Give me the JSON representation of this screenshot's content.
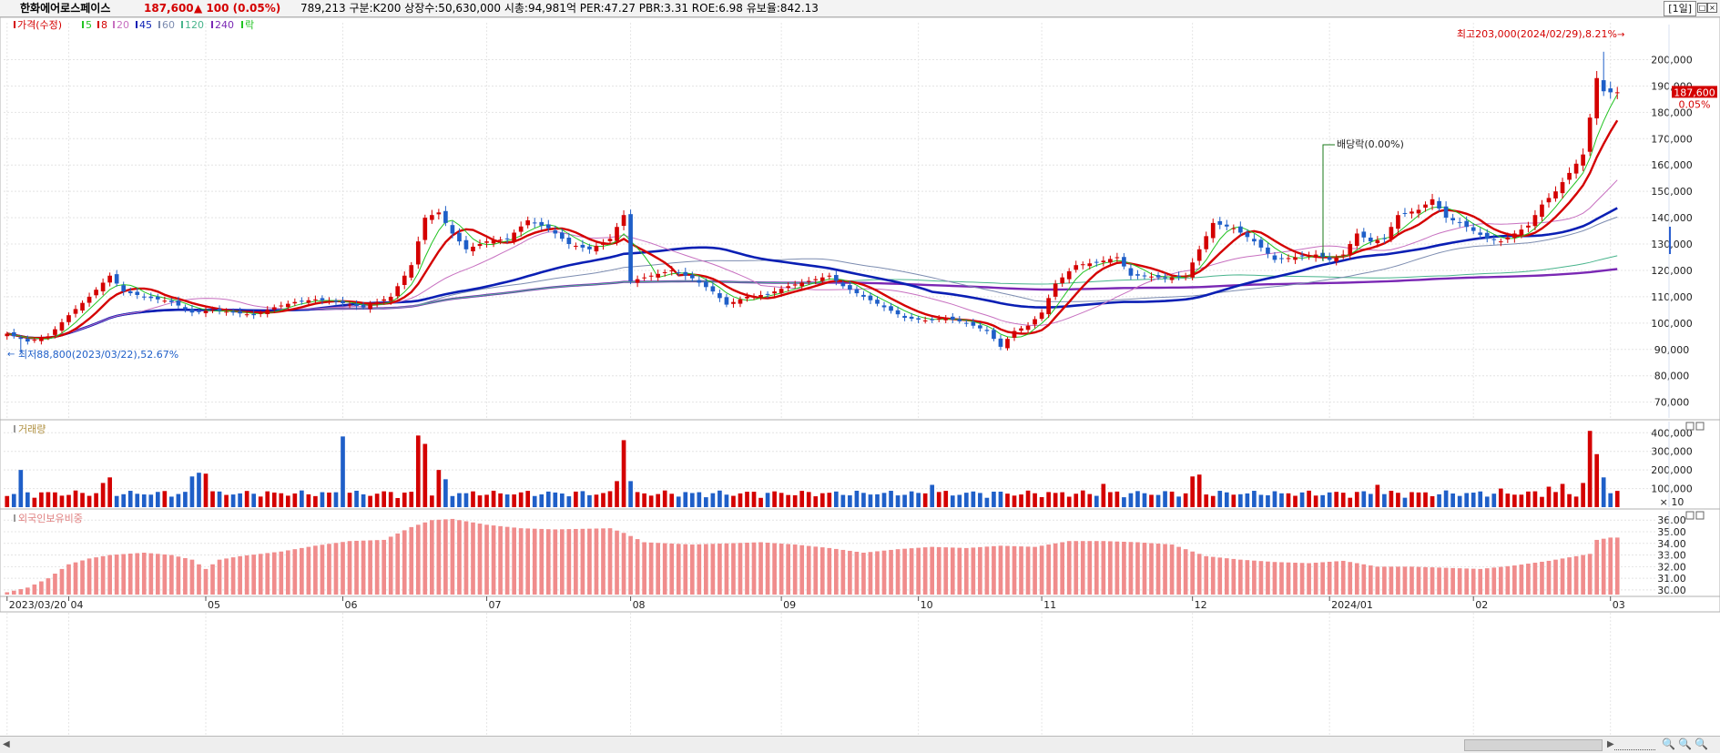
{
  "header": {
    "stock_name": "한화에어로스페이스",
    "price": "187,600",
    "change": "▲ 100 (0.05%)",
    "stats": "789,213  구분:K200 상장수:50,630,000 시총:94,981억 PER:47.27 PBR:3.31 ROE:6.98 유보율:842.13",
    "period_button": "[1일]"
  },
  "colors": {
    "up": "#d40000",
    "down": "#1f5fc8",
    "ma5": "#22c322",
    "ma8": "#d40000",
    "ma20": "#c770c0",
    "ma45": "#0a1fb4",
    "ma60": "#7c8cb0",
    "ma120": "#48b48c",
    "ma240": "#7a28b4",
    "foreign_bar": "#f08c8c"
  },
  "chart_data": [
    {
      "type": "candlestick",
      "panel": "price",
      "legend": [
        {
          "label": "가격(수정)",
          "color": "#d40000"
        },
        {
          "label": "5",
          "color": "#22c322"
        },
        {
          "label": "8",
          "color": "#d40000"
        },
        {
          "label": "20",
          "color": "#c770c0"
        },
        {
          "label": "45",
          "color": "#0a1fb4"
        },
        {
          "label": "60",
          "color": "#7c8cb0"
        },
        {
          "label": "120",
          "color": "#48b48c"
        },
        {
          "label": "240",
          "color": "#7a28b4"
        },
        {
          "label": "락",
          "color": "#22c322"
        }
      ],
      "y_ticks": [
        200000,
        190000,
        180000,
        170000,
        160000,
        150000,
        140000,
        130000,
        120000,
        110000,
        100000,
        90000,
        80000,
        70000
      ],
      "y_tick_labels": [
        "200,000",
        "190,000",
        "180,000",
        "170,000",
        "160,000",
        "150,000",
        "140,000",
        "130,000",
        "120,000",
        "110,000",
        "100,000",
        "90,000",
        "80,000",
        "70,000"
      ],
      "ylim": [
        64000,
        214000
      ],
      "x_labels": [
        {
          "label": "2023/03/20",
          "index": 0
        },
        {
          "label": "04",
          "index": 9
        },
        {
          "label": "05",
          "index": 29
        },
        {
          "label": "06",
          "index": 49
        },
        {
          "label": "07",
          "index": 70
        },
        {
          "label": "08",
          "index": 91
        },
        {
          "label": "09",
          "index": 113
        },
        {
          "label": "10",
          "index": 133
        },
        {
          "label": "11",
          "index": 151
        },
        {
          "label": "12",
          "index": 173
        },
        {
          "label": "2024/01",
          "index": 193
        },
        {
          "label": "02",
          "index": 214
        },
        {
          "label": "03",
          "index": 234
        }
      ],
      "n_points": 236,
      "key_closes": [
        [
          0,
          96000
        ],
        [
          3,
          93000
        ],
        [
          6,
          95000
        ],
        [
          9,
          103000
        ],
        [
          12,
          110000
        ],
        [
          15,
          118000
        ],
        [
          17,
          112000
        ],
        [
          20,
          110000
        ],
        [
          24,
          108000
        ],
        [
          27,
          104000
        ],
        [
          30,
          105000
        ],
        [
          33,
          104000
        ],
        [
          36,
          103000
        ],
        [
          39,
          106000
        ],
        [
          42,
          108000
        ],
        [
          45,
          109000
        ],
        [
          48,
          108000
        ],
        [
          52,
          106000
        ],
        [
          56,
          110000
        ],
        [
          59,
          122000
        ],
        [
          61,
          140000
        ],
        [
          63,
          142000
        ],
        [
          65,
          134000
        ],
        [
          67,
          128000
        ],
        [
          70,
          131000
        ],
        [
          73,
          132000
        ],
        [
          76,
          139000
        ],
        [
          79,
          136000
        ],
        [
          82,
          130000
        ],
        [
          85,
          128000
        ],
        [
          88,
          132000
        ],
        [
          90,
          141000
        ],
        [
          91,
          116000
        ],
        [
          94,
          118000
        ],
        [
          97,
          120000
        ],
        [
          100,
          117000
        ],
        [
          103,
          112000
        ],
        [
          105,
          107000
        ],
        [
          108,
          110000
        ],
        [
          111,
          111000
        ],
        [
          114,
          114000
        ],
        [
          117,
          116000
        ],
        [
          120,
          118000
        ],
        [
          122,
          114000
        ],
        [
          125,
          110000
        ],
        [
          128,
          106000
        ],
        [
          131,
          102000
        ],
        [
          134,
          101000
        ],
        [
          137,
          102000
        ],
        [
          140,
          100000
        ],
        [
          143,
          97000
        ],
        [
          145,
          91000
        ],
        [
          147,
          97000
        ],
        [
          149,
          99000
        ],
        [
          151,
          104000
        ],
        [
          153,
          115000
        ],
        [
          156,
          122000
        ],
        [
          159,
          123000
        ],
        [
          162,
          125000
        ],
        [
          164,
          118000
        ],
        [
          166,
          118000
        ],
        [
          169,
          117000
        ],
        [
          172,
          118000
        ],
        [
          174,
          128000
        ],
        [
          176,
          138000
        ],
        [
          179,
          136000
        ],
        [
          182,
          131000
        ],
        [
          185,
          124000
        ],
        [
          188,
          125000
        ],
        [
          191,
          126000
        ],
        [
          193,
          124000
        ],
        [
          195,
          126000
        ],
        [
          197,
          134000
        ],
        [
          199,
          131000
        ],
        [
          201,
          132000
        ],
        [
          203,
          141000
        ],
        [
          206,
          143000
        ],
        [
          208,
          147000
        ],
        [
          210,
          140000
        ],
        [
          212,
          138000
        ],
        [
          214,
          135000
        ],
        [
          216,
          132000
        ],
        [
          218,
          131000
        ],
        [
          220,
          134000
        ],
        [
          222,
          137000
        ],
        [
          224,
          145000
        ],
        [
          226,
          150000
        ],
        [
          228,
          157000
        ],
        [
          230,
          164000
        ],
        [
          231,
          178000
        ],
        [
          232,
          193000
        ],
        [
          233,
          188000
        ],
        [
          234,
          187600
        ]
      ],
      "high_annotation": "최고203,000(2024/02/29),8.21%",
      "low_annotation": "최저88,800(2023/03/22),52.67%",
      "dividend_annotation": "배당락(0.00%)",
      "last_price_label": "187,600",
      "last_change_label": "0.05%"
    },
    {
      "type": "bar",
      "panel": "volume",
      "legend": [
        {
          "label": "거래량",
          "color": "#999999"
        }
      ],
      "y_ticks": [
        400000,
        300000,
        200000,
        100000
      ],
      "y_tick_labels": [
        "400,000",
        "300,000",
        "200,000",
        "100,000"
      ],
      "unit_label": "× 10",
      "ylim": [
        0,
        460000
      ],
      "spikes": [
        [
          2,
          200000
        ],
        [
          14,
          130000
        ],
        [
          15,
          160000
        ],
        [
          27,
          165000
        ],
        [
          28,
          185000
        ],
        [
          29,
          180000
        ],
        [
          49,
          380000
        ],
        [
          60,
          385000
        ],
        [
          61,
          340000
        ],
        [
          63,
          200000
        ],
        [
          64,
          150000
        ],
        [
          89,
          140000
        ],
        [
          90,
          360000
        ],
        [
          91,
          140000
        ],
        [
          135,
          120000
        ],
        [
          160,
          125000
        ],
        [
          173,
          165000
        ],
        [
          174,
          175000
        ],
        [
          200,
          120000
        ],
        [
          218,
          100000
        ],
        [
          225,
          110000
        ],
        [
          227,
          125000
        ],
        [
          230,
          130000
        ],
        [
          231,
          410000
        ],
        [
          232,
          285000
        ],
        [
          233,
          160000
        ],
        [
          234,
          75000
        ]
      ]
    },
    {
      "type": "bar",
      "panel": "foreign_ownership",
      "legend": [
        {
          "label": "외국인보유비중",
          "color": "#f08c8c"
        }
      ],
      "y_ticks": [
        36,
        35,
        34,
        33,
        32,
        31,
        30
      ],
      "y_tick_labels": [
        "36.00",
        "35.00",
        "34.00",
        "33.00",
        "32.00",
        "31.00",
        "30.00"
      ],
      "ylim": [
        29.6,
        36.8
      ],
      "key_values": [
        [
          0,
          29.8
        ],
        [
          3,
          30.2
        ],
        [
          6,
          31.0
        ],
        [
          9,
          32.2
        ],
        [
          12,
          32.7
        ],
        [
          15,
          33.0
        ],
        [
          20,
          33.2
        ],
        [
          24,
          33.0
        ],
        [
          27,
          32.6
        ],
        [
          29,
          31.8
        ],
        [
          31,
          32.6
        ],
        [
          34,
          32.9
        ],
        [
          40,
          33.3
        ],
        [
          45,
          33.8
        ],
        [
          50,
          34.2
        ],
        [
          55,
          34.3
        ],
        [
          59,
          35.4
        ],
        [
          62,
          36.0
        ],
        [
          65,
          36.1
        ],
        [
          70,
          35.6
        ],
        [
          75,
          35.3
        ],
        [
          80,
          35.2
        ],
        [
          88,
          35.3
        ],
        [
          90,
          34.9
        ],
        [
          93,
          34.1
        ],
        [
          100,
          33.9
        ],
        [
          110,
          34.1
        ],
        [
          115,
          33.9
        ],
        [
          120,
          33.6
        ],
        [
          125,
          33.2
        ],
        [
          130,
          33.5
        ],
        [
          135,
          33.7
        ],
        [
          140,
          33.6
        ],
        [
          145,
          33.8
        ],
        [
          150,
          33.7
        ],
        [
          155,
          34.2
        ],
        [
          160,
          34.2
        ],
        [
          165,
          34.1
        ],
        [
          170,
          33.9
        ],
        [
          175,
          32.9
        ],
        [
          180,
          32.6
        ],
        [
          185,
          32.4
        ],
        [
          190,
          32.3
        ],
        [
          195,
          32.5
        ],
        [
          200,
          32.0
        ],
        [
          205,
          32.0
        ],
        [
          210,
          31.9
        ],
        [
          215,
          31.8
        ],
        [
          220,
          32.1
        ],
        [
          225,
          32.5
        ],
        [
          228,
          32.8
        ],
        [
          231,
          33.1
        ],
        [
          232,
          34.3
        ],
        [
          234,
          34.5
        ]
      ]
    }
  ],
  "footer": {
    "scroll_left": "◀",
    "scroll_right": "▶",
    "zoom_in": "🔍",
    "zoom_out": "🔍",
    "zoom_fit": "🔍"
  }
}
